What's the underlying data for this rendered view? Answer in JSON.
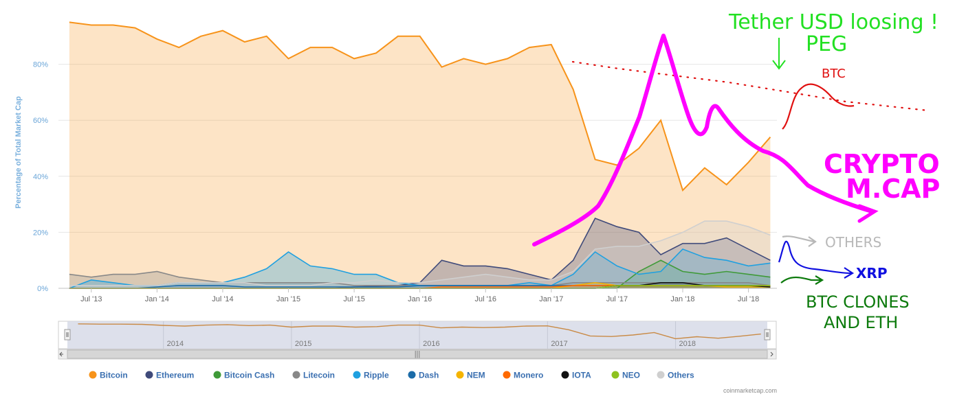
{
  "chart_data": {
    "type": "area",
    "title": "",
    "ylabel": "Percentage of Total Market Cap",
    "xlabel": "",
    "ylim": [
      0,
      100
    ],
    "grid": true,
    "legend_position": "bottom",
    "y_ticks": [
      "0%",
      "20%",
      "40%",
      "60%",
      "80%"
    ],
    "x_ticks": [
      "Jul '13",
      "Jan '14",
      "Jul '14",
      "Jan '15",
      "Jul '15",
      "Jan '16",
      "Jul '16",
      "Jan '17",
      "Jul '17",
      "Jan '18",
      "Jul '18"
    ],
    "x": [
      "2013-05",
      "2013-07",
      "2013-09",
      "2013-11",
      "2014-01",
      "2014-03",
      "2014-05",
      "2014-07",
      "2014-09",
      "2014-11",
      "2015-01",
      "2015-03",
      "2015-05",
      "2015-07",
      "2015-09",
      "2015-11",
      "2016-01",
      "2016-03",
      "2016-05",
      "2016-07",
      "2016-09",
      "2016-11",
      "2017-01",
      "2017-03",
      "2017-05",
      "2017-07",
      "2017-09",
      "2017-11",
      "2018-01",
      "2018-03",
      "2018-05",
      "2018-07",
      "2018-09"
    ],
    "series": [
      {
        "name": "Bitcoin",
        "color": "#f7931a",
        "values": [
          95,
          94,
          94,
          93,
          89,
          86,
          90,
          92,
          88,
          90,
          82,
          86,
          86,
          82,
          84,
          90,
          90,
          79,
          82,
          80,
          82,
          86,
          87,
          71,
          46,
          44,
          50,
          60,
          35,
          43,
          37,
          45,
          54
        ]
      },
      {
        "name": "Ethereum",
        "color": "#3f4a7a",
        "values": [
          0,
          0,
          0,
          0,
          0,
          0,
          0,
          0,
          0,
          0,
          0,
          0,
          0,
          0.5,
          0.8,
          1,
          2,
          10,
          8,
          8,
          7,
          5,
          3,
          10,
          25,
          22,
          20,
          12,
          16,
          16,
          18,
          14,
          10
        ]
      },
      {
        "name": "Bitcoin Cash",
        "color": "#3f9a38",
        "values": [
          0,
          0,
          0,
          0,
          0,
          0,
          0,
          0,
          0,
          0,
          0,
          0,
          0,
          0,
          0,
          0,
          0,
          0,
          0,
          0,
          0,
          0,
          0,
          0,
          0,
          0,
          6,
          10,
          6,
          5,
          6,
          5,
          4
        ]
      },
      {
        "name": "Litecoin",
        "color": "#888888",
        "values": [
          5,
          4,
          5,
          5,
          6,
          4,
          3,
          2,
          2,
          2,
          2,
          2,
          2,
          1,
          1,
          1,
          1,
          1,
          1,
          1,
          1,
          1,
          1,
          2,
          2,
          2,
          2,
          2,
          2,
          2,
          2,
          2,
          1
        ]
      },
      {
        "name": "Ripple",
        "color": "#1fa0e0",
        "values": [
          0,
          3,
          2,
          1,
          1,
          2,
          2,
          2,
          4,
          7,
          13,
          8,
          7,
          5,
          5,
          2,
          1,
          1,
          1,
          1,
          1,
          2,
          1,
          5,
          13,
          8,
          5,
          6,
          14,
          11,
          10,
          8,
          9
        ]
      },
      {
        "name": "Dash",
        "color": "#1c6ca8",
        "values": [
          0,
          0,
          0,
          0,
          0.5,
          1,
          1,
          1,
          0.5,
          0.5,
          0.5,
          0.5,
          0.5,
          0.5,
          0.5,
          0.5,
          1,
          1,
          1,
          1,
          1,
          1,
          1,
          1,
          1,
          1,
          1,
          1,
          1,
          1,
          1,
          1,
          1
        ]
      },
      {
        "name": "NEM",
        "color": "#f5b400",
        "values": [
          0,
          0,
          0,
          0,
          0,
          0,
          0,
          0,
          0,
          0,
          0,
          0,
          0,
          0,
          0,
          0,
          0,
          0,
          0,
          0,
          0,
          0,
          0,
          1,
          2,
          1,
          1,
          1,
          1,
          1,
          0.5,
          0.5,
          0.5
        ]
      },
      {
        "name": "Monero",
        "color": "#ff6a00",
        "values": [
          0,
          0,
          0,
          0,
          0,
          0,
          0,
          0,
          0,
          0,
          0,
          0,
          0,
          0,
          0,
          0,
          0,
          0.5,
          0.5,
          0.5,
          0.5,
          0.5,
          0.5,
          1,
          1,
          1,
          1,
          1,
          1,
          1,
          1,
          1,
          1
        ]
      },
      {
        "name": "IOTA",
        "color": "#111111",
        "values": [
          0,
          0,
          0,
          0,
          0,
          0,
          0,
          0,
          0,
          0,
          0,
          0,
          0,
          0,
          0,
          0,
          0,
          0,
          0,
          0,
          0,
          0,
          0,
          0,
          0,
          1,
          1,
          2,
          2,
          1,
          1,
          1,
          0.5
        ]
      },
      {
        "name": "NEO",
        "color": "#8ec21f",
        "values": [
          0,
          0,
          0,
          0,
          0,
          0,
          0,
          0,
          0,
          0,
          0,
          0,
          0,
          0,
          0,
          0,
          0,
          0,
          0,
          0,
          0,
          0,
          0,
          0,
          0,
          1,
          1,
          1,
          1,
          1,
          1,
          1,
          1
        ]
      },
      {
        "name": "Others",
        "color": "#cfcfcf",
        "values": [
          1,
          1,
          1,
          1,
          1,
          2,
          2,
          2,
          2,
          1,
          1,
          1,
          2,
          2,
          3,
          2,
          2,
          3,
          4,
          5,
          4,
          3,
          3,
          6,
          14,
          15,
          15,
          17,
          20,
          24,
          24,
          22,
          19
        ]
      }
    ],
    "navigator": {
      "year_labels": [
        "2014",
        "2015",
        "2016",
        "2017",
        "2018"
      ],
      "scroll_center_glyph": "|||"
    },
    "credit": "coinmarketcap.com"
  },
  "annotations": {
    "tether_line1": "Tether USD loosing !",
    "tether_line2": "PEG",
    "btc": "BTC",
    "crypto_line1": "CRYPTO",
    "crypto_line2": "M.CAP",
    "others": "OTHERS",
    "xrp": "XRP",
    "clones_line1": "BTC CLONES",
    "clones_line2": "AND ETH",
    "colors": {
      "green": "#22e022",
      "red": "#e01010",
      "magenta": "#ff00ff",
      "gray": "#b8b8b8",
      "blue": "#1010e0",
      "darkgreen": "#0c7a0c"
    }
  }
}
